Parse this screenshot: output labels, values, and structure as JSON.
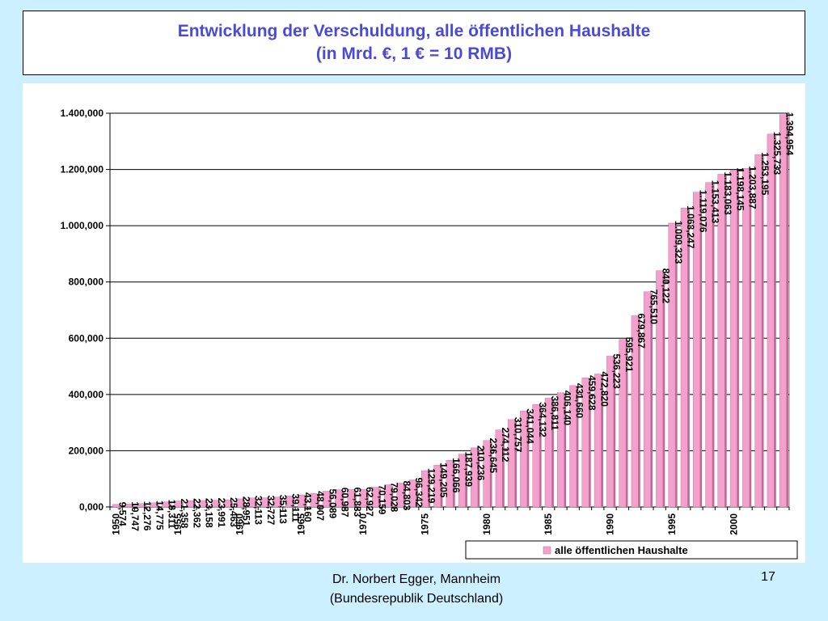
{
  "slide": {
    "title_line1": "Entwicklung der Verschuldung, alle öffentlichen Haushalte",
    "title_line2": "(in Mrd. €, 1 € = 10 RMB)",
    "author_line1": "Dr. Norbert Egger, Mannheim",
    "author_line2": "(Bundesrepublik Deutschland)",
    "page_number": "17"
  },
  "colors": {
    "background": "#ccf0ff",
    "title_text": "#4a4ad8",
    "bar_fill": "#f4a0cc",
    "bar_side": "#c06898",
    "gridline": "#000000"
  },
  "chart_data": {
    "type": "bar",
    "title": "",
    "xlabel": "",
    "ylabel": "",
    "ylim": [
      0,
      1400000
    ],
    "ytick_values": [
      0,
      200000,
      400000,
      600000,
      800000,
      1000000,
      1200000,
      1400000
    ],
    "ytick_labels": [
      "0,000",
      "200,000",
      "400,000",
      "600,000",
      "800,000",
      "1.000,000",
      "1.200,000",
      "1.400,000"
    ],
    "grid": true,
    "legend_position": "bottom-right",
    "categories": [
      "1950",
      "1951",
      "1952",
      "1953",
      "1954",
      "1955",
      "1956",
      "1957",
      "1958",
      "1959",
      "1960",
      "1961",
      "1962",
      "1963",
      "1964",
      "1965",
      "1966",
      "1967",
      "1968",
      "1969",
      "1970",
      "1971",
      "1972",
      "1973",
      "1974",
      "1975",
      "1976",
      "1977",
      "1978",
      "1979",
      "1980",
      "1981",
      "1982",
      "1983",
      "1984",
      "1985",
      "1986",
      "1987",
      "1988",
      "1989",
      "1990",
      "1991",
      "1992",
      "1993",
      "1994",
      "1995",
      "1996",
      "1997",
      "1998",
      "1999",
      "2000",
      "2001",
      "2002",
      "2003",
      "2004"
    ],
    "x_tick_labels_shown": [
      "1950",
      "1955",
      "1960",
      "1965",
      "1970",
      "1975",
      "1980",
      "1985",
      "1990",
      "1995",
      "2000"
    ],
    "series": [
      {
        "name": "alle öffentlichen Haushalte",
        "values": [
          9574,
          10747,
          12276,
          14775,
          18311,
          21358,
          22362,
          23158,
          23991,
          25463,
          28951,
          32113,
          32727,
          35113,
          39111,
          43160,
          48007,
          56089,
          60987,
          61883,
          62927,
          70159,
          79028,
          84803,
          96342,
          129219,
          149205,
          166066,
          187939,
          210236,
          236645,
          274112,
          310757,
          341044,
          364132,
          386811,
          406140,
          431660,
          459628,
          472820,
          536223,
          595921,
          679867,
          765510,
          840122,
          1009323,
          1063247,
          1119076,
          1153413,
          1183063,
          1198145,
          1203887,
          1253195,
          1325733,
          1394954
        ],
        "labels": [
          "9,574",
          "10,747",
          "12,276",
          "14,775",
          "18,311",
          "21,358",
          "22,362",
          "23,158",
          "23,991",
          "25,463",
          "28,951",
          "32,113",
          "32,727",
          "35,113",
          "39,111",
          "43,160",
          "48,007",
          "56,089",
          "60,987",
          "61,883",
          "62,927",
          "70,159",
          "79,028",
          "84,803",
          "96,342",
          "129,219",
          "149,205",
          "166,066",
          "187,939",
          "210,236",
          "236,645",
          "274,112",
          "310,757",
          "341,044",
          "364,132",
          "386,811",
          "406,140",
          "431,660",
          "459,628",
          "472,820",
          "536,223",
          "595,921",
          "679,867",
          "765,510",
          "840,122",
          "1.009,323",
          "1.063,247",
          "1.119,076",
          "1.153,413",
          "1.183,063",
          "1.198,145",
          "1.203,887",
          "1.253,195",
          "1.325,733",
          "1.394,954"
        ]
      }
    ]
  }
}
